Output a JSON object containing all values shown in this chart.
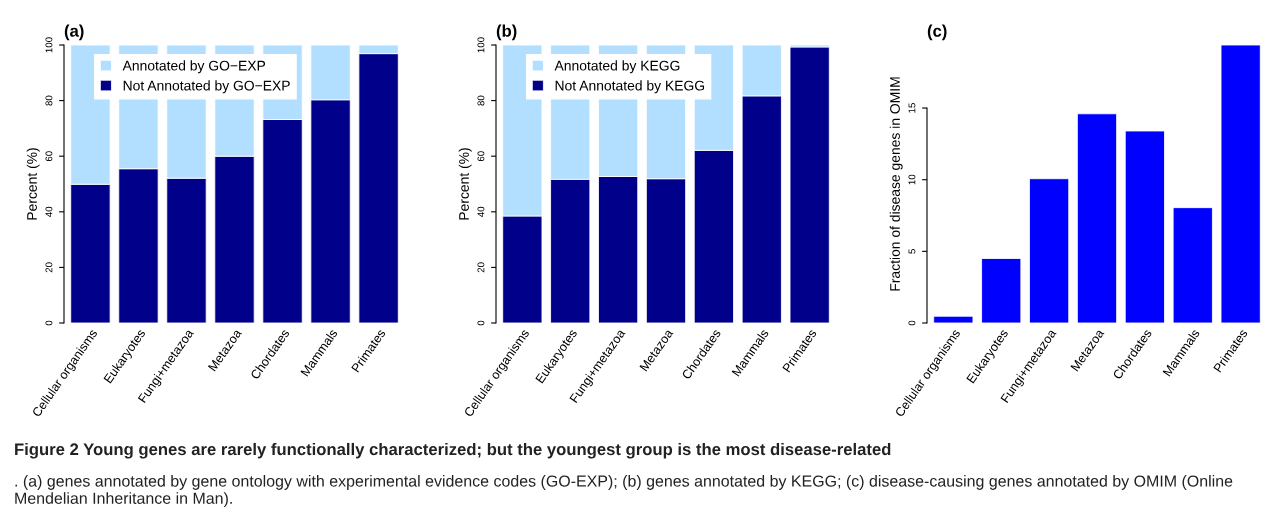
{
  "chart_data": [
    {
      "type": "bar",
      "title": "(a)",
      "ylabel": "Percent (%)",
      "stacked": true,
      "legend": "top left",
      "grid": false,
      "categories": [
        "Cellular organisms",
        "Eukaryotes",
        "Fungi+metazoa",
        "Metazoa",
        "Chordates",
        "Mammals",
        "Primates"
      ],
      "series": [
        {
          "name": "Not Annotated by GO−EXP",
          "color": "#00008b",
          "values": [
            49.9,
            55.5,
            52.1,
            60.0,
            73.2,
            80.3,
            96.9
          ]
        },
        {
          "name": "Annotated by GO−EXP",
          "color": "#b2dfff",
          "values": [
            50.1,
            44.5,
            47.9,
            40.0,
            26.8,
            19.7,
            3.1
          ]
        }
      ],
      "ylim": [
        0,
        100
      ],
      "yticks": [
        0,
        20,
        40,
        60,
        80,
        100
      ],
      "annotations": [
        "Figure 2 Young genes are rarely functionally characterized; but the youngest group is the most disease-related",
        ". (a) genes annotated by gene ontology with experimental evidence codes (GO-EXP); (b) genes annotated by KEGG; (c) disease-causing genes annotated by OMIM (Online Mendelian Inheritance in Man)."
      ]
    },
    {
      "type": "bar",
      "title": "(b)",
      "ylabel": "Percent (%)",
      "stacked": true,
      "legend": "top left",
      "grid": false,
      "categories": [
        "Cellular organisms",
        "Eukaryotes",
        "Fungi+metazoa",
        "Metazoa",
        "Chordates",
        "Mammals",
        "Primates"
      ],
      "series": [
        {
          "name": "Not Annotated by KEGG",
          "color": "#00008b",
          "values": [
            38.5,
            51.7,
            52.7,
            51.9,
            62.1,
            81.7,
            99.3
          ]
        },
        {
          "name": "Annotated by KEGG",
          "color": "#b2dfff",
          "values": [
            61.5,
            48.3,
            47.3,
            48.1,
            37.9,
            18.3,
            0.7
          ]
        }
      ],
      "ylim": [
        0,
        100
      ],
      "yticks": [
        0,
        20,
        40,
        60,
        80,
        100
      ]
    },
    {
      "type": "bar",
      "title": "(c)",
      "ylabel": "Fraction of disease genes in OMIM",
      "grid": false,
      "categories": [
        "Cellular organisms",
        "Eukaryotes",
        "Fungi+metazoa",
        "Metazoa",
        "Chordates",
        "Mammals",
        "Primates"
      ],
      "series": [
        {
          "color": "#0000ff",
          "values": [
            0.47,
            4.5,
            10.07,
            14.6,
            13.4,
            8.05,
            19.4
          ]
        }
      ],
      "ylim": [
        0,
        19.4
      ],
      "yticks": [
        0,
        5,
        10,
        15
      ]
    }
  ]
}
